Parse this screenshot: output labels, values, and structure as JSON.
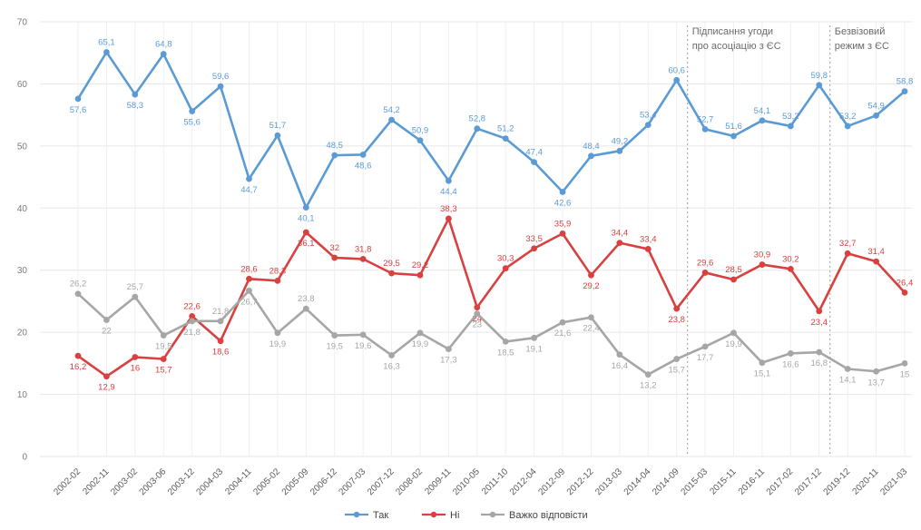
{
  "chart_data": {
    "type": "line",
    "ylim": [
      0,
      70
    ],
    "yticks": [
      "0",
      "10",
      "20",
      "30",
      "40",
      "50",
      "60",
      "70"
    ],
    "grid": true,
    "legend_placement": "bottom-center",
    "categories": [
      "2002-02",
      "2002-11",
      "2003-02",
      "2003-06",
      "2003-12",
      "2004-03",
      "2004-11",
      "2005-02",
      "2005-09",
      "2006-12",
      "2007-03",
      "2007-12",
      "2008-02",
      "2009-11",
      "2010-05",
      "2011-10",
      "2012-04",
      "2012-09",
      "2012-12",
      "2013-03",
      "2014-04",
      "2014-09",
      "2015-03",
      "2015-11",
      "2016-11",
      "2017-02",
      "2017-12",
      "2019-12",
      "2020-11",
      "2021-03"
    ],
    "series": [
      {
        "name": "Так",
        "color": "#5b9bd5",
        "values": [
          57.6,
          65.1,
          58.3,
          64.8,
          55.6,
          59.6,
          44.7,
          51.7,
          40.1,
          48.5,
          48.6,
          54.2,
          50.9,
          44.4,
          52.8,
          51.2,
          47.4,
          42.6,
          48.4,
          49.2,
          53.4,
          60.6,
          52.7,
          51.6,
          54.1,
          53.2,
          59.8,
          53.2,
          54.9,
          58.8
        ],
        "labels": [
          "57,6",
          "65,1",
          "58,3",
          "64,8",
          "55,6",
          "59,6",
          "44,7",
          "51,7",
          "40,1",
          "48,5",
          "48,6",
          "54,2",
          "50,9",
          "44,4",
          "52,8",
          "51,2",
          "47,4",
          "42,6",
          "48,4",
          "49,2",
          "53,4",
          "60,6",
          "52,7",
          "51,6",
          "54,1",
          "53,2",
          "59,8",
          "53,2",
          "54,9",
          "58,8"
        ]
      },
      {
        "name": "Ні",
        "color": "#d94040",
        "values": [
          16.2,
          12.9,
          16,
          15.7,
          22.6,
          18.6,
          28.6,
          28.3,
          36.1,
          32,
          31.8,
          29.5,
          29.2,
          38.3,
          24,
          30.3,
          33.5,
          35.9,
          29.2,
          34.4,
          33.4,
          23.8,
          29.6,
          28.5,
          30.9,
          30.2,
          23.4,
          32.7,
          31.4,
          26.4
        ],
        "labels": [
          "16,2",
          "12,9",
          "16",
          "15,7",
          "22,6",
          "18,6",
          "28,6",
          "28,3",
          "36,1",
          "32",
          "31,8",
          "29,5",
          "29,2",
          "38,3",
          "24",
          "30,3",
          "33,5",
          "35,9",
          "29,2",
          "34,4",
          "33,4",
          "23,8",
          "29,6",
          "28,5",
          "30,9",
          "30,2",
          "23,4",
          "32,7",
          "31,4",
          "26,4"
        ]
      },
      {
        "name": "Важко відповісти",
        "color": "#a6a6a6",
        "values": [
          26.2,
          22,
          25.7,
          19.5,
          21.8,
          21.8,
          26.7,
          19.9,
          23.8,
          19.5,
          19.6,
          16.3,
          19.9,
          17.3,
          23,
          18.5,
          19.1,
          21.6,
          22.4,
          16.4,
          13.2,
          15.7,
          17.7,
          19.9,
          15.1,
          16.6,
          16.8,
          14.1,
          13.7,
          15
        ],
        "labels": [
          "26,2",
          "22",
          "25,7",
          "19,5",
          "21,8",
          "21,8",
          "26,7",
          "19,9",
          "23,8",
          "19,5",
          "19,6",
          "16,3",
          "19,9",
          "17,3",
          "23",
          "18,5",
          "19,1",
          "21,6",
          "22,4",
          "16,4",
          "13,2",
          "15,7",
          "17,7",
          "19,9",
          "15,1",
          "16,6",
          "16,8",
          "14,1",
          "13,7",
          "15"
        ]
      }
    ],
    "annotations": [
      {
        "category_index": 21,
        "lines": [
          "Підписання угоди",
          "про асоціацію з ЄС"
        ]
      },
      {
        "category_index": 26,
        "lines": [
          "Безвізовий",
          "режим з ЄС"
        ]
      }
    ]
  }
}
